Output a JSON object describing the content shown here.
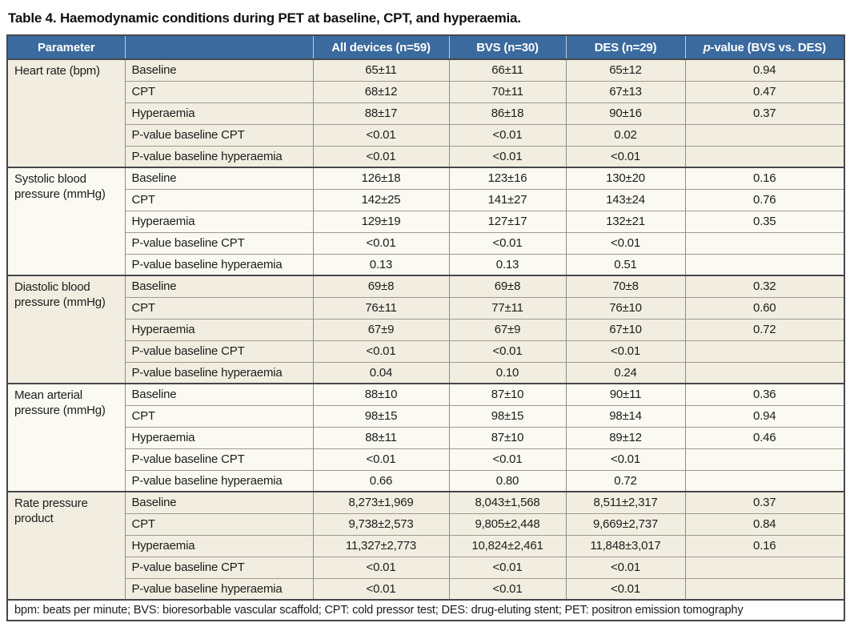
{
  "title": "Table 4. Haemodynamic conditions during PET at baseline, CPT, and hyperaemia.",
  "colors": {
    "header_bg": "#3a6a9e",
    "band_cream": "#f1eee1",
    "band_light": "#fbfaf2",
    "border_dark": "#46474a",
    "header_text": "#ffffff"
  },
  "table": {
    "headers": {
      "parameter": "Parameter",
      "condition": "",
      "all": "All devices (n=59)",
      "bvs": "BVS (n=30)",
      "des": "DES (n=29)",
      "p_italic": "p",
      "p_rest": "-value (BVS vs. DES)"
    },
    "sections": [
      {
        "parameter": "Heart rate (bpm)",
        "band": "cream",
        "rows": [
          {
            "label": "Baseline",
            "all": "65±11",
            "bvs": "66±11",
            "des": "65±12",
            "p": "0.94"
          },
          {
            "label": "CPT",
            "all": "68±12",
            "bvs": "70±11",
            "des": "67±13",
            "p": "0.47"
          },
          {
            "label": "Hyperaemia",
            "all": "88±17",
            "bvs": "86±18",
            "des": "90±16",
            "p": "0.37"
          },
          {
            "label": "P-value baseline CPT",
            "all": "<0.01",
            "bvs": "<0.01",
            "des": "0.02",
            "p": ""
          },
          {
            "label": "P-value baseline hyperaemia",
            "all": "<0.01",
            "bvs": "<0.01",
            "des": "<0.01",
            "p": ""
          }
        ]
      },
      {
        "parameter": "Systolic blood pressure (mmHg)",
        "band": "light",
        "rows": [
          {
            "label": "Baseline",
            "all": "126±18",
            "bvs": "123±16",
            "des": "130±20",
            "p": "0.16"
          },
          {
            "label": "CPT",
            "all": "142±25",
            "bvs": "141±27",
            "des": "143±24",
            "p": "0.76"
          },
          {
            "label": "Hyperaemia",
            "all": "129±19",
            "bvs": "127±17",
            "des": "132±21",
            "p": "0.35"
          },
          {
            "label": "P-value baseline CPT",
            "all": "<0.01",
            "bvs": "<0.01",
            "des": "<0.01",
            "p": ""
          },
          {
            "label": "P-value baseline hyperaemia",
            "all": "0.13",
            "bvs": "0.13",
            "des": "0.51",
            "p": ""
          }
        ]
      },
      {
        "parameter": "Diastolic blood pressure (mmHg)",
        "band": "cream",
        "rows": [
          {
            "label": "Baseline",
            "all": "69±8",
            "bvs": "69±8",
            "des": "70±8",
            "p": "0.32"
          },
          {
            "label": "CPT",
            "all": "76±11",
            "bvs": "77±11",
            "des": "76±10",
            "p": "0.60"
          },
          {
            "label": "Hyperaemia",
            "all": "67±9",
            "bvs": "67±9",
            "des": "67±10",
            "p": "0.72"
          },
          {
            "label": "P-value baseline CPT",
            "all": "<0.01",
            "bvs": "<0.01",
            "des": "<0.01",
            "p": ""
          },
          {
            "label": "P-value baseline hyperaemia",
            "all": "0.04",
            "bvs": "0.10",
            "des": "0.24",
            "p": ""
          }
        ]
      },
      {
        "parameter": "Mean arterial pressure (mmHg)",
        "band": "light",
        "rows": [
          {
            "label": "Baseline",
            "all": "88±10",
            "bvs": "87±10",
            "des": "90±11",
            "p": "0.36"
          },
          {
            "label": "CPT",
            "all": "98±15",
            "bvs": "98±15",
            "des": "98±14",
            "p": "0.94"
          },
          {
            "label": "Hyperaemia",
            "all": "88±11",
            "bvs": "87±10",
            "des": "89±12",
            "p": "0.46"
          },
          {
            "label": "P-value baseline CPT",
            "all": "<0.01",
            "bvs": "<0.01",
            "des": "<0.01",
            "p": ""
          },
          {
            "label": "P-value baseline hyperaemia",
            "all": "0.66",
            "bvs": "0.80",
            "des": "0.72",
            "p": ""
          }
        ]
      },
      {
        "parameter": "Rate pressure product",
        "band": "cream",
        "rows": [
          {
            "label": "Baseline",
            "all": "8,273±1,969",
            "bvs": "8,043±1,568",
            "des": "8,511±2,317",
            "p": "0.37"
          },
          {
            "label": "CPT",
            "all": "9,738±2,573",
            "bvs": "9,805±2,448",
            "des": "9,669±2,737",
            "p": "0.84"
          },
          {
            "label": "Hyperaemia",
            "all": "11,327±2,773",
            "bvs": "10,824±2,461",
            "des": "11,848±3,017",
            "p": "0.16"
          },
          {
            "label": "P-value baseline CPT",
            "all": "<0.01",
            "bvs": "<0.01",
            "des": "<0.01",
            "p": ""
          },
          {
            "label": "P-value baseline hyperaemia",
            "all": "<0.01",
            "bvs": "<0.01",
            "des": "<0.01",
            "p": ""
          }
        ]
      }
    ],
    "footnote": "bpm: beats per minute; BVS: bioresorbable vascular scaffold; CPT: cold pressor test; DES: drug-eluting stent; PET: positron emission tomography"
  }
}
